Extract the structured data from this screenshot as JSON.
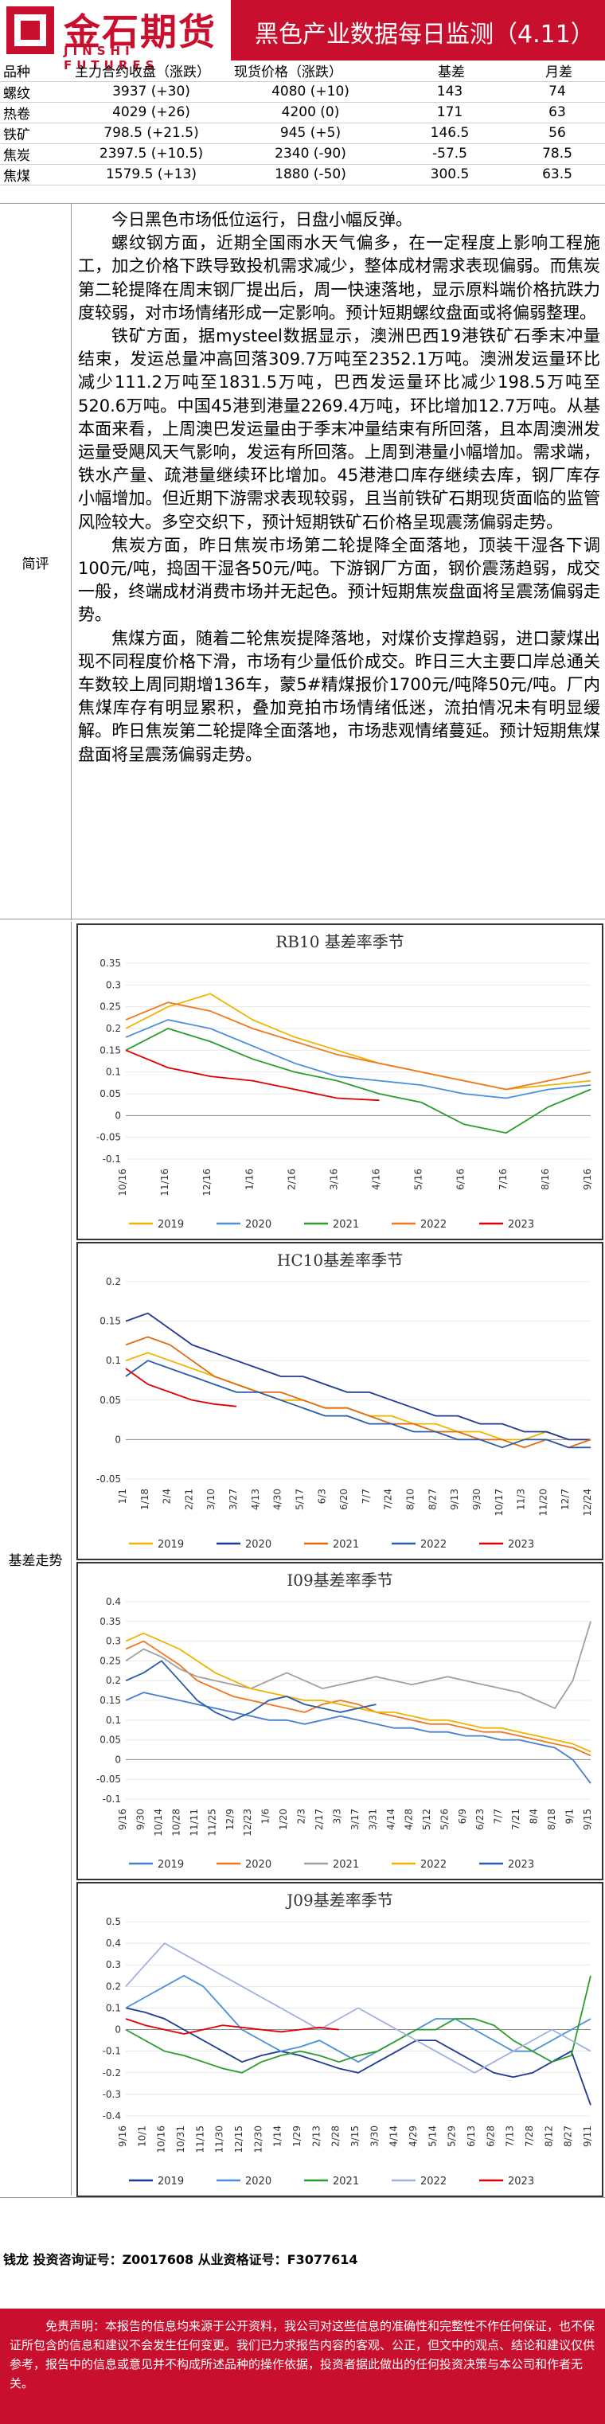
{
  "header": {
    "logo_cn": "金石期货",
    "logo_en": "JINSHI FUTURES",
    "title": "黑色产业数据每日监测（4.11）"
  },
  "table": {
    "headers": [
      "品种",
      "主力合约收盘（涨跌）",
      "现货价格（涨跌）",
      "基差",
      "月差"
    ],
    "rows": [
      [
        "螺纹",
        "3937 (+30)",
        "4080 (+10)",
        "143",
        "74"
      ],
      [
        "热卷",
        "4029 (+26)",
        "4200 (0)",
        "171",
        "63"
      ],
      [
        "铁矿",
        "798.5 (+21.5)",
        "945 (+5)",
        "146.5",
        "56"
      ],
      [
        "焦炭",
        "2397.5 (+10.5)",
        "2340 (-90)",
        "-57.5",
        "78.5"
      ],
      [
        "焦煤",
        "1579.5 (+13)",
        "1880 (-50)",
        "300.5",
        "63.5"
      ]
    ]
  },
  "commentary": {
    "label": "简评",
    "paragraphs": [
      "今日黑色市场低位运行，日盘小幅反弹。",
      "螺纹钢方面，近期全国雨水天气偏多，在一定程度上影响工程施工，加之价格下跌导致投机需求减少，整体成材需求表现偏弱。而焦炭第二轮提降在周末钢厂提出后，周一快速落地，显示原料端价格抗跌力度较弱，对市场情绪形成一定影响。预计短期螺纹盘面或将偏弱整理。",
      "铁矿方面，据mysteel数据显示，澳洲巴西19港铁矿石季末冲量结束，发运总量冲高回落309.7万吨至2352.1万吨。澳洲发运量环比减少111.2万吨至1831.5万吨，巴西发运量环比减少198.5万吨至520.6万吨。中国45港到港量2269.4万吨，环比增加12.7万吨。从基本面来看，上周澳巴发运量由于季末冲量结束有所回落，且本周澳洲发运量受飓风天气影响，发运有所回落。上周到港量小幅增加。需求端，铁水产量、疏港量继续环比增加。45港港口库存继续去库，钢厂库存小幅增加。但近期下游需求表现较弱，且当前铁矿石期现货面临的监管风险较大。多空交织下，预计短期铁矿石价格呈现震荡偏弱走势。",
      "焦炭方面，昨日焦炭市场第二轮提降全面落地，顶装干湿各下调100元/吨，捣固干湿各50元/吨。下游钢厂方面，钢价震荡趋弱，成交一般，终端成材消费市场并无起色。预计短期焦炭盘面将呈震荡偏弱走势。",
      "焦煤方面，随着二轮焦炭提降落地，对煤价支撑趋弱，进口蒙煤出现不同程度价格下滑，市场有少量低价成交。昨日三大主要口岸总通关车数较上周同期增136车，蒙5#精煤报价1700元/吨降50元/吨。厂内焦煤库存有明显累积，叠加竞拍市场情绪低迷，流拍情况未有明显缓解。昨日焦炭第二轮提降全面落地，市场悲观情绪蔓延。预计短期焦煤盘面将呈震荡偏弱走势。"
    ]
  },
  "charts_label": "基差走势",
  "chart_data": [
    {
      "type": "line",
      "title": "RB10 基差率季节",
      "yticks": [
        "0.35",
        "0.3",
        "0.25",
        "0.2",
        "0.15",
        "0.1",
        "0.05",
        "0",
        "-0.05",
        "-0.1"
      ],
      "ylim": [
        -0.1,
        0.35
      ],
      "xticks": [
        "10/16",
        "11/16",
        "12/16",
        "1/16",
        "2/16",
        "3/16",
        "4/16",
        "5/16",
        "6/16",
        "7/16",
        "8/16",
        "9/16"
      ],
      "series": [
        {
          "name": "2019",
          "color": "#f0b400",
          "values": [
            0.2,
            0.25,
            0.28,
            0.22,
            0.18,
            0.15,
            0.12,
            0.1,
            0.08,
            0.06,
            0.07,
            0.08
          ]
        },
        {
          "name": "2020",
          "color": "#4a90d9",
          "values": [
            0.18,
            0.22,
            0.2,
            0.16,
            0.12,
            0.09,
            0.08,
            0.07,
            0.05,
            0.04,
            0.06,
            0.07
          ]
        },
        {
          "name": "2021",
          "color": "#2a9d2a",
          "values": [
            0.15,
            0.2,
            0.17,
            0.13,
            0.1,
            0.08,
            0.05,
            0.03,
            -0.02,
            -0.04,
            0.02,
            0.06
          ]
        },
        {
          "name": "2022",
          "color": "#f07820",
          "values": [
            0.22,
            0.26,
            0.24,
            0.2,
            0.17,
            0.14,
            0.12,
            0.1,
            0.08,
            0.06,
            0.08,
            0.1
          ]
        },
        {
          "name": "2023",
          "color": "#e00000",
          "values": [
            0.15,
            0.11,
            0.09,
            0.08,
            0.06,
            0.04,
            0.035
          ]
        }
      ]
    },
    {
      "type": "line",
      "title": "HC10基差率季节",
      "yticks": [
        "0.2",
        "0.15",
        "0.1",
        "0.05",
        "0",
        "-0.05"
      ],
      "ylim": [
        -0.05,
        0.2
      ],
      "xticks": [
        "1/1",
        "1/18",
        "2/4",
        "2/21",
        "3/10",
        "3/27",
        "4/13",
        "4/30",
        "5/17",
        "6/3",
        "6/20",
        "7/7",
        "7/24",
        "8/10",
        "8/27",
        "9/13",
        "9/30",
        "10/17",
        "11/3",
        "11/20",
        "12/7",
        "12/24"
      ],
      "series": [
        {
          "name": "2019",
          "color": "#f0b400",
          "values": [
            0.1,
            0.11,
            0.1,
            0.09,
            0.08,
            0.07,
            0.06,
            0.05,
            0.05,
            0.04,
            0.04,
            0.03,
            0.03,
            0.02,
            0.02,
            0.01,
            0.01,
            0.0,
            0.0,
            0.01,
            0.0,
            0.0
          ]
        },
        {
          "name": "2020",
          "color": "#1f3a93",
          "values": [
            0.15,
            0.16,
            0.14,
            0.12,
            0.11,
            0.1,
            0.09,
            0.08,
            0.08,
            0.07,
            0.06,
            0.06,
            0.05,
            0.04,
            0.03,
            0.03,
            0.02,
            0.02,
            0.01,
            0.01,
            0.0,
            0.0
          ]
        },
        {
          "name": "2021",
          "color": "#e06a10",
          "values": [
            0.12,
            0.13,
            0.12,
            0.1,
            0.08,
            0.07,
            0.06,
            0.06,
            0.05,
            0.04,
            0.04,
            0.03,
            0.02,
            0.02,
            0.01,
            0.01,
            0.0,
            0.0,
            -0.01,
            0.0,
            -0.01,
            0.0
          ]
        },
        {
          "name": "2022",
          "color": "#2a5caa",
          "values": [
            0.08,
            0.1,
            0.09,
            0.08,
            0.07,
            0.06,
            0.06,
            0.05,
            0.04,
            0.03,
            0.03,
            0.02,
            0.02,
            0.01,
            0.01,
            0.0,
            0.0,
            -0.01,
            0.0,
            0.0,
            -0.01,
            -0.01
          ]
        },
        {
          "name": "2023",
          "color": "#e00000",
          "values": [
            0.09,
            0.07,
            0.06,
            0.05,
            0.045,
            0.042
          ]
        }
      ]
    },
    {
      "type": "line",
      "title": "I09基差率季节",
      "yticks": [
        "0.4",
        "0.35",
        "0.3",
        "0.25",
        "0.2",
        "0.15",
        "0.1",
        "0.05",
        "0",
        "-0.05",
        "-0.1"
      ],
      "ylim": [
        -0.1,
        0.4
      ],
      "xticks": [
        "9/16",
        "9/30",
        "10/14",
        "10/28",
        "11/11",
        "11/25",
        "12/9",
        "12/23",
        "1/6",
        "1/20",
        "2/3",
        "2/17",
        "3/3",
        "3/17",
        "3/31",
        "4/14",
        "4/28",
        "5/12",
        "5/26",
        "6/9",
        "6/23",
        "7/7",
        "7/21",
        "8/4",
        "8/18",
        "9/1",
        "9/15"
      ],
      "series": [
        {
          "name": "2019",
          "color": "#4a7fd0",
          "values": [
            0.15,
            0.17,
            0.16,
            0.15,
            0.14,
            0.13,
            0.12,
            0.11,
            0.1,
            0.1,
            0.09,
            0.1,
            0.11,
            0.1,
            0.09,
            0.08,
            0.08,
            0.07,
            0.07,
            0.06,
            0.06,
            0.05,
            0.05,
            0.04,
            0.03,
            0.0,
            -0.06
          ]
        },
        {
          "name": "2020",
          "color": "#f07820",
          "values": [
            0.28,
            0.3,
            0.27,
            0.24,
            0.2,
            0.18,
            0.16,
            0.15,
            0.14,
            0.13,
            0.12,
            0.14,
            0.15,
            0.14,
            0.12,
            0.11,
            0.1,
            0.09,
            0.09,
            0.08,
            0.07,
            0.07,
            0.06,
            0.05,
            0.04,
            0.03,
            0.01
          ]
        },
        {
          "name": "2021",
          "color": "#a0a0a0",
          "values": [
            0.25,
            0.28,
            0.26,
            0.23,
            0.21,
            0.2,
            0.19,
            0.18,
            0.2,
            0.22,
            0.2,
            0.18,
            0.19,
            0.2,
            0.21,
            0.2,
            0.19,
            0.2,
            0.21,
            0.2,
            0.19,
            0.18,
            0.17,
            0.15,
            0.13,
            0.2,
            0.35
          ]
        },
        {
          "name": "2022",
          "color": "#f0b400",
          "values": [
            0.3,
            0.32,
            0.3,
            0.28,
            0.25,
            0.22,
            0.2,
            0.18,
            0.17,
            0.16,
            0.15,
            0.15,
            0.14,
            0.13,
            0.12,
            0.12,
            0.11,
            0.1,
            0.1,
            0.09,
            0.08,
            0.08,
            0.07,
            0.06,
            0.05,
            0.04,
            0.02
          ]
        },
        {
          "name": "2023",
          "color": "#2a5caa",
          "values": [
            0.2,
            0.22,
            0.25,
            0.2,
            0.15,
            0.12,
            0.1,
            0.12,
            0.15,
            0.16,
            0.14,
            0.13,
            0.12,
            0.13,
            0.14
          ]
        }
      ]
    },
    {
      "type": "line",
      "title": "J09基差率季节",
      "yticks": [
        "0.5",
        "0.4",
        "0.3",
        "0.2",
        "0.1",
        "0",
        "-0.1",
        "-0.2",
        "-0.3",
        "-0.4"
      ],
      "ylim": [
        -0.4,
        0.5
      ],
      "xticks": [
        "9/16",
        "10/1",
        "10/16",
        "10/31",
        "11/15",
        "11/30",
        "12/15",
        "12/30",
        "1/14",
        "1/29",
        "2/13",
        "2/28",
        "3/15",
        "3/30",
        "4/14",
        "4/29",
        "5/14",
        "5/29",
        "6/13",
        "6/28",
        "7/13",
        "7/28",
        "8/12",
        "8/27",
        "9/11"
      ],
      "series": [
        {
          "name": "2019",
          "color": "#1f3a93",
          "values": [
            0.1,
            0.08,
            0.05,
            0.0,
            -0.05,
            -0.1,
            -0.15,
            -0.12,
            -0.1,
            -0.12,
            -0.15,
            -0.18,
            -0.2,
            -0.15,
            -0.1,
            -0.05,
            -0.05,
            -0.1,
            -0.15,
            -0.2,
            -0.22,
            -0.2,
            -0.15,
            -0.1,
            -0.35
          ]
        },
        {
          "name": "2020",
          "color": "#4a90d9",
          "values": [
            0.1,
            0.15,
            0.2,
            0.25,
            0.2,
            0.1,
            0.0,
            -0.05,
            -0.1,
            -0.08,
            -0.05,
            -0.1,
            -0.15,
            -0.1,
            -0.05,
            0.0,
            0.05,
            0.05,
            0.0,
            -0.05,
            -0.1,
            -0.1,
            -0.05,
            0.0,
            0.05
          ]
        },
        {
          "name": "2021",
          "color": "#2a9d2a",
          "values": [
            0.0,
            -0.05,
            -0.1,
            -0.12,
            -0.15,
            -0.18,
            -0.2,
            -0.15,
            -0.12,
            -0.1,
            -0.12,
            -0.15,
            -0.12,
            -0.1,
            -0.05,
            0.0,
            0.0,
            0.05,
            0.05,
            0.02,
            -0.05,
            -0.1,
            -0.15,
            -0.12,
            0.25
          ]
        },
        {
          "name": "2022",
          "color": "#a0b0e0",
          "values": [
            0.2,
            0.3,
            0.4,
            0.35,
            0.3,
            0.25,
            0.2,
            0.15,
            0.1,
            0.05,
            0.0,
            0.05,
            0.1,
            0.05,
            0.0,
            -0.05,
            -0.1,
            -0.15,
            -0.2,
            -0.15,
            -0.1,
            -0.05,
            0.0,
            -0.05,
            -0.1
          ]
        },
        {
          "name": "2023",
          "color": "#e00000",
          "values": [
            0.05,
            0.02,
            0.0,
            -0.02,
            0.0,
            0.02,
            0.01,
            0.0,
            -0.01,
            0.0,
            0.01,
            0.0
          ]
        }
      ]
    }
  ],
  "contact": "钱龙  投资咨询证号：Z0017608  从业资格证号：F3077614",
  "disclaimer": "免责声明：本报告的信息均来源于公开资料，我公司对这些信息的准确性和完整性不作任何保证，也不保证所包含的信息和建议不会发生任何变更。我们已力求报告内容的客观、公正，但文中的观点、结论和建议仅供参考，报告中的信息或意见并不构成所述品种的操作依据，投资者据此做出的任何投资决策与本公司和作者无关。"
}
